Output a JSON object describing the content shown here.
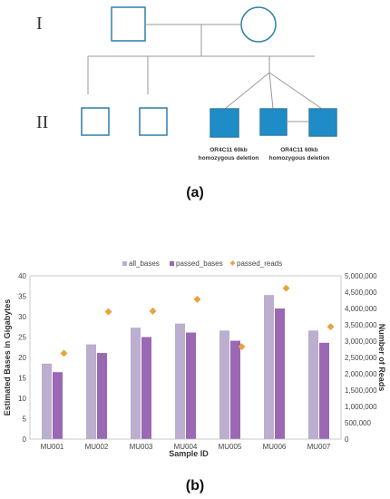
{
  "pedigree": {
    "generations": [
      "I",
      "II"
    ],
    "annotations": [
      {
        "line1": "OR4C11 60kb",
        "line2": "homozygous deletion"
      },
      {
        "line1": "OR4C11 60kb",
        "line2": "homozygous deletion"
      }
    ],
    "panel_label": "(a)",
    "colors": {
      "outline": "#2e7fa9",
      "affected_fill": "#1f8cc8",
      "line": "#999999"
    }
  },
  "chart_panel_label": "(b)",
  "chart_data": {
    "type": "bar",
    "categories": [
      "MU001",
      "MU002",
      "MU003",
      "MU004",
      "MU005",
      "MU006",
      "MU007"
    ],
    "series": [
      {
        "name": "all_bases",
        "type": "bar",
        "axis": "left",
        "color": "#bbaecf",
        "values": [
          18.5,
          23.2,
          27.3,
          28.3,
          26.6,
          35.3,
          26.6
        ]
      },
      {
        "name": "passed_bases",
        "type": "bar",
        "axis": "left",
        "color": "#9b68b4",
        "values": [
          16.4,
          21.1,
          25.0,
          26.1,
          24.1,
          32.0,
          23.6
        ]
      },
      {
        "name": "passed_reads",
        "type": "scatter",
        "axis": "right",
        "color": "#e8a33d",
        "values": [
          2630000,
          3900000,
          3920000,
          4280000,
          2830000,
          4620000,
          3440000
        ]
      }
    ],
    "xlabel": "Sample ID",
    "ylabel": "Estimated Bases in Gigabytes",
    "y2label": "Number of Reads",
    "ylim": [
      0,
      40
    ],
    "y2lim": [
      0,
      5000000
    ],
    "yticks": [
      "0",
      "5",
      "10",
      "15",
      "20",
      "25",
      "30",
      "35",
      "40"
    ],
    "y2ticks": [
      "0",
      "500,000",
      "1,000,000",
      "1,500,000",
      "2,000,000",
      "2,500,000",
      "3,000,000",
      "3,500,000",
      "4,000,000",
      "4,500,000",
      "5,000,000"
    ],
    "legend_position": "top",
    "grid": false
  }
}
